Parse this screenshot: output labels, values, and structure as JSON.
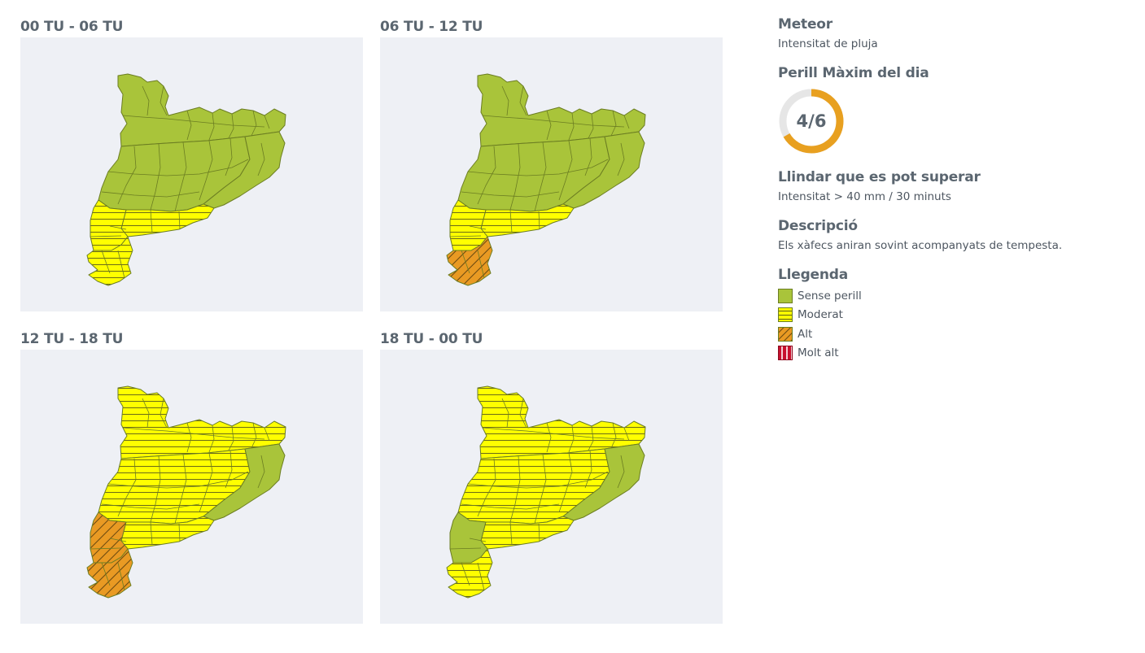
{
  "colors": {
    "sense": "#a9c43a",
    "moderat": "#ffff00",
    "alt": "#e99a23",
    "molt_alt": "#c8102e",
    "border": "#6b7d22",
    "map_bg": "#eef0f5",
    "gauge": "#e8a020",
    "gauge_track": "#e6e6e6"
  },
  "panels": [
    {
      "title": "00 TU - 06 TU",
      "zones": {
        "north": "sense",
        "central": "sense",
        "east": "sense",
        "coast": "moderat",
        "ebre": "moderat",
        "delta": "moderat"
      }
    },
    {
      "title": "06 TU - 12 TU",
      "zones": {
        "north": "sense",
        "central": "sense",
        "east": "sense",
        "coast": "moderat",
        "ebre": "moderat",
        "delta": "alt"
      }
    },
    {
      "title": "12 TU - 18 TU",
      "zones": {
        "north": "moderat",
        "central": "moderat",
        "east": "sense",
        "coast": "moderat",
        "ebre": "alt",
        "delta": "alt"
      }
    },
    {
      "title": "18 TU - 00 TU",
      "zones": {
        "north": "moderat",
        "central": "moderat",
        "east": "sense",
        "coast": "moderat",
        "ebre": "sense",
        "delta": "moderat"
      }
    }
  ],
  "sidebar": {
    "meteor_heading": "Meteor",
    "meteor_value": "Intensitat de pluja",
    "perill_heading": "Perill Màxim del dia",
    "perill_value": "4/6",
    "perill_level": 4,
    "perill_max": 6,
    "llindar_heading": "Llindar que es pot superar",
    "llindar_value": "Intensitat > 40 mm / 30 minuts",
    "descripcio_heading": "Descripció",
    "descripcio_value": "Els xàfecs aniran sovint acompanyats de tempesta.",
    "llegenda_heading": "Llegenda",
    "legend": [
      {
        "label": "Sense perill",
        "level": "sense"
      },
      {
        "label": "Moderat",
        "level": "moderat"
      },
      {
        "label": "Alt",
        "level": "alt"
      },
      {
        "label": "Molt alt",
        "level": "molt_alt"
      }
    ]
  }
}
